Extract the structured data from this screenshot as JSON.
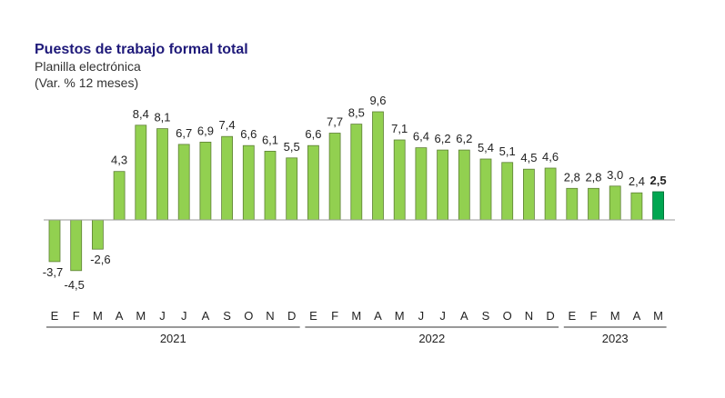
{
  "chart_data": {
    "type": "bar",
    "title": "Puestos de trabajo formal total",
    "subtitle_lines": [
      "Planilla electrónica",
      "(Var. % 12 meses)"
    ],
    "categories": [
      "E",
      "F",
      "M",
      "A",
      "M",
      "J",
      "J",
      "A",
      "S",
      "O",
      "N",
      "D",
      "E",
      "F",
      "M",
      "A",
      "M",
      "J",
      "J",
      "A",
      "S",
      "O",
      "N",
      "D",
      "E",
      "F",
      "M",
      "A",
      "M"
    ],
    "values": [
      -3.7,
      -4.5,
      -2.6,
      4.3,
      8.4,
      8.1,
      6.7,
      6.9,
      7.4,
      6.6,
      6.1,
      5.5,
      6.6,
      7.7,
      8.5,
      9.6,
      7.1,
      6.4,
      6.2,
      6.2,
      5.4,
      5.1,
      4.5,
      4.6,
      2.8,
      2.8,
      3.0,
      2.4,
      2.5
    ],
    "labels": [
      "-3,7",
      "-4,5",
      "-2,6",
      "4,3",
      "8,4",
      "8,1",
      "6,7",
      "6,9",
      "7,4",
      "6,6",
      "6,1",
      "5,5",
      "6,6",
      "7,7",
      "8,5",
      "9,6",
      "7,1",
      "6,4",
      "6,2",
      "6,2",
      "5,4",
      "5,1",
      "4,5",
      "4,6",
      "2,8",
      "2,8",
      "3,0",
      "2,4",
      "2,5"
    ],
    "year_groups": [
      {
        "label": "2021",
        "start": 0,
        "end": 11
      },
      {
        "label": "2022",
        "start": 12,
        "end": 23
      },
      {
        "label": "2023",
        "start": 24,
        "end": 28
      }
    ],
    "highlight_index": 28,
    "colors": {
      "bar": "#92d050",
      "bar_stroke": "#5e7f35",
      "highlight": "#00a651",
      "highlight_stroke": "#006b35",
      "title": "#1f1a7a"
    },
    "grid": false
  }
}
